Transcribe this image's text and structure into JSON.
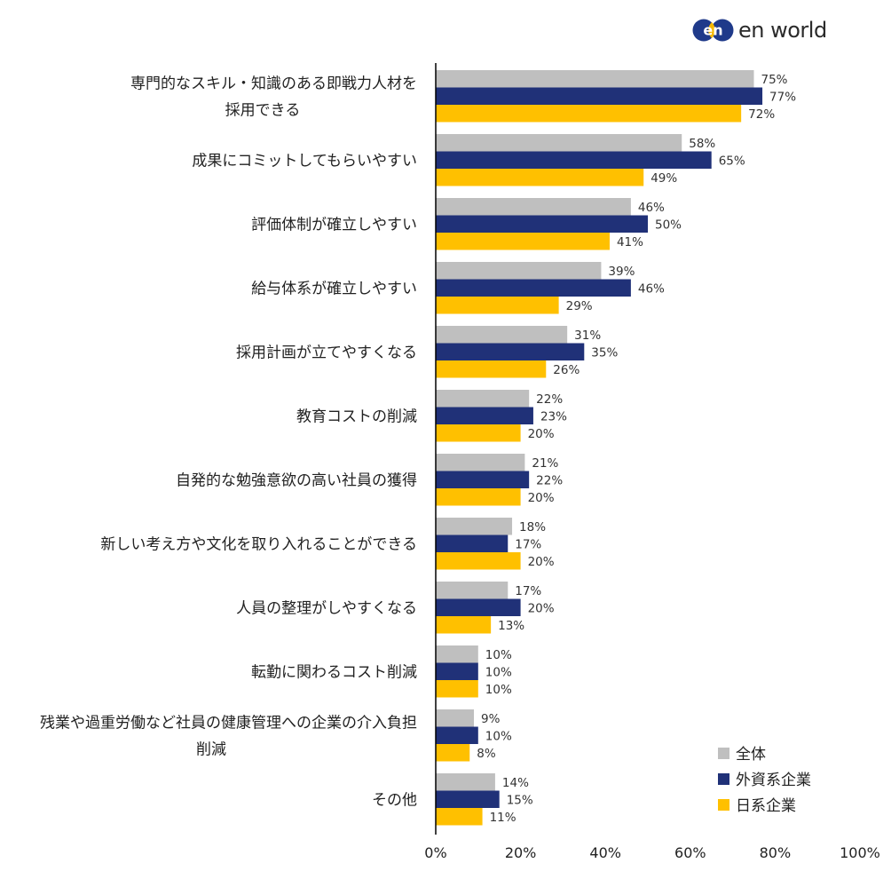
{
  "brand": {
    "name": "en world",
    "mark_text": "en",
    "colors": {
      "blue": "#1f3a8a",
      "yellow": "#f5b800"
    }
  },
  "colors": {
    "all": "#bfbfbf",
    "foreign": "#203178",
    "japanese": "#ffc000",
    "axis": "#000000"
  },
  "chart_data": {
    "type": "bar",
    "orientation": "horizontal",
    "categories": [
      [
        "専門的なスキル・知識のある即戦力人材を",
        "採用できる"
      ],
      [
        "成果にコミットしてもらいやすい"
      ],
      [
        "評価体制が確立しやすい"
      ],
      [
        "給与体系が確立しやすい"
      ],
      [
        "採用計画が立てやすくなる"
      ],
      [
        "教育コストの削減"
      ],
      [
        "自発的な勉強意欲の高い社員の獲得"
      ],
      [
        "新しい考え方や文化を取り入れることができる"
      ],
      [
        "人員の整理がしやすくなる"
      ],
      [
        "転勤に関わるコスト削減"
      ],
      [
        "残業や過重労働など社員の健康管理への企業の介入負担",
        "削減"
      ],
      [
        "その他"
      ]
    ],
    "series": [
      {
        "name": "全体",
        "color_key": "all",
        "values": [
          75,
          58,
          46,
          39,
          31,
          22,
          21,
          18,
          17,
          10,
          9,
          14
        ]
      },
      {
        "name": "外資系企業",
        "color_key": "foreign",
        "values": [
          77,
          65,
          50,
          46,
          35,
          23,
          22,
          17,
          20,
          10,
          10,
          15
        ]
      },
      {
        "name": "日系企業",
        "color_key": "japanese",
        "values": [
          72,
          49,
          41,
          29,
          26,
          20,
          20,
          20,
          13,
          10,
          8,
          11
        ]
      }
    ],
    "value_suffix": "%",
    "xlim": [
      0,
      100
    ],
    "xticks": [
      0,
      20,
      40,
      60,
      80,
      100
    ],
    "xtick_labels": [
      "0%",
      "20%",
      "40%",
      "60%",
      "80%",
      "100%"
    ],
    "grid": false,
    "legend_position": "bottom-right"
  }
}
